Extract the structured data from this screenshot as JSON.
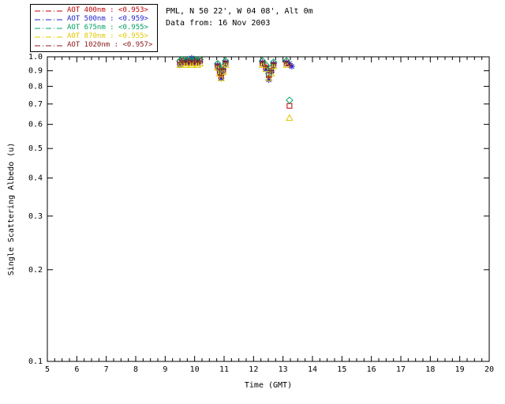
{
  "header": {
    "site_line": "PML, N 50 22', W 04 08', Alt 0m",
    "data_line": "Data from: 16 Nov 2003"
  },
  "chart_data": {
    "type": "scatter",
    "title": "PML, N 50 22', W 04 08', Alt 0m",
    "subtitle": "Data from: 16 Nov 2003",
    "xlabel": "Time (GMT)",
    "ylabel": "Single Scattering Albedo (u)",
    "xlim": [
      5,
      20
    ],
    "ylim": [
      0.1,
      1.0
    ],
    "yscale": "log",
    "grid": false,
    "legend_position": "top-left",
    "xticks": [
      5,
      6,
      7,
      8,
      9,
      10,
      11,
      12,
      13,
      14,
      15,
      16,
      17,
      18,
      19,
      20
    ],
    "yticks": [
      0.1,
      0.2,
      0.3,
      0.4,
      0.5,
      0.6,
      0.7,
      0.8,
      0.9,
      1.0
    ],
    "legend_separator": " : ",
    "series": [
      {
        "name": "AOT  400nm",
        "mean_label": "<0.953>",
        "color": "#c00000",
        "marker": "square",
        "points": [
          [
            9.5,
            0.96
          ],
          [
            9.58,
            0.97
          ],
          [
            9.7,
            0.96
          ],
          [
            9.8,
            0.97
          ],
          [
            9.9,
            0.96
          ],
          [
            10.0,
            0.97
          ],
          [
            10.1,
            0.96
          ],
          [
            10.18,
            0.97
          ],
          [
            10.78,
            0.93
          ],
          [
            10.85,
            0.89
          ],
          [
            10.9,
            0.86
          ],
          [
            10.97,
            0.9
          ],
          [
            11.05,
            0.95
          ],
          [
            12.3,
            0.95
          ],
          [
            12.42,
            0.92
          ],
          [
            12.52,
            0.87
          ],
          [
            12.6,
            0.9
          ],
          [
            12.68,
            0.94
          ],
          [
            13.12,
            0.95
          ],
          [
            13.22,
            0.69
          ]
        ]
      },
      {
        "name": "AOT  500nm",
        "mean_label": "<0.959>",
        "color": "#2222cc",
        "marker": "asterisk",
        "points": [
          [
            9.5,
            0.94
          ],
          [
            9.58,
            0.96
          ],
          [
            9.7,
            0.97
          ],
          [
            9.8,
            0.96
          ],
          [
            9.9,
            0.99
          ],
          [
            10.0,
            0.96
          ],
          [
            10.1,
            0.97
          ],
          [
            10.18,
            0.96
          ],
          [
            10.78,
            0.94
          ],
          [
            10.85,
            0.9
          ],
          [
            10.9,
            0.85
          ],
          [
            10.97,
            0.91
          ],
          [
            11.05,
            0.96
          ],
          [
            12.3,
            0.96
          ],
          [
            12.42,
            0.91
          ],
          [
            12.52,
            0.84
          ],
          [
            12.6,
            0.89
          ],
          [
            12.68,
            0.95
          ],
          [
            13.12,
            0.96
          ],
          [
            13.22,
            0.95
          ],
          [
            13.3,
            0.93
          ]
        ]
      },
      {
        "name": "AOT  675nm",
        "mean_label": "<0.955>",
        "color": "#00a060",
        "marker": "diamond",
        "points": [
          [
            9.5,
            0.97
          ],
          [
            9.58,
            0.98
          ],
          [
            9.7,
            0.97
          ],
          [
            9.8,
            0.98
          ],
          [
            9.9,
            0.97
          ],
          [
            10.0,
            0.98
          ],
          [
            10.1,
            0.97
          ],
          [
            10.18,
            0.98
          ],
          [
            10.78,
            0.95
          ],
          [
            10.85,
            0.92
          ],
          [
            10.9,
            0.89
          ],
          [
            10.97,
            0.93
          ],
          [
            11.05,
            0.97
          ],
          [
            12.3,
            0.97
          ],
          [
            12.42,
            0.94
          ],
          [
            12.52,
            0.88
          ],
          [
            12.6,
            0.92
          ],
          [
            12.68,
            0.96
          ],
          [
            13.12,
            0.97
          ],
          [
            13.22,
            0.72
          ]
        ]
      },
      {
        "name": "AOT  870nm",
        "mean_label": "<0.955>",
        "color": "#e0c800",
        "marker": "triangle",
        "points": [
          [
            9.5,
            0.94
          ],
          [
            9.58,
            0.95
          ],
          [
            9.7,
            0.94
          ],
          [
            9.8,
            0.95
          ],
          [
            9.9,
            0.94
          ],
          [
            10.0,
            0.95
          ],
          [
            10.1,
            0.94
          ],
          [
            10.18,
            0.95
          ],
          [
            10.78,
            0.92
          ],
          [
            10.85,
            0.88
          ],
          [
            10.9,
            0.85
          ],
          [
            10.97,
            0.89
          ],
          [
            11.05,
            0.94
          ],
          [
            12.3,
            0.94
          ],
          [
            12.42,
            0.91
          ],
          [
            12.52,
            0.85
          ],
          [
            12.6,
            0.88
          ],
          [
            12.68,
            0.93
          ],
          [
            13.12,
            0.94
          ],
          [
            13.22,
            0.63
          ]
        ]
      },
      {
        "name": "AOT 1020nm",
        "mean_label": "<0.957>",
        "color": "#8b1a1a",
        "marker": "plus",
        "points": [
          [
            9.5,
            0.96
          ],
          [
            9.58,
            0.97
          ],
          [
            9.7,
            0.96
          ],
          [
            9.8,
            0.97
          ],
          [
            9.9,
            0.96
          ],
          [
            10.0,
            0.97
          ],
          [
            10.1,
            0.96
          ],
          [
            10.18,
            0.97
          ],
          [
            10.78,
            0.94
          ],
          [
            10.85,
            0.91
          ],
          [
            10.9,
            0.87
          ],
          [
            10.97,
            0.91
          ],
          [
            11.05,
            0.96
          ],
          [
            12.3,
            0.96
          ],
          [
            12.42,
            0.93
          ],
          [
            12.52,
            0.86
          ],
          [
            12.6,
            0.9
          ],
          [
            12.68,
            0.95
          ],
          [
            13.12,
            0.96
          ],
          [
            13.22,
            0.94
          ]
        ]
      }
    ]
  }
}
